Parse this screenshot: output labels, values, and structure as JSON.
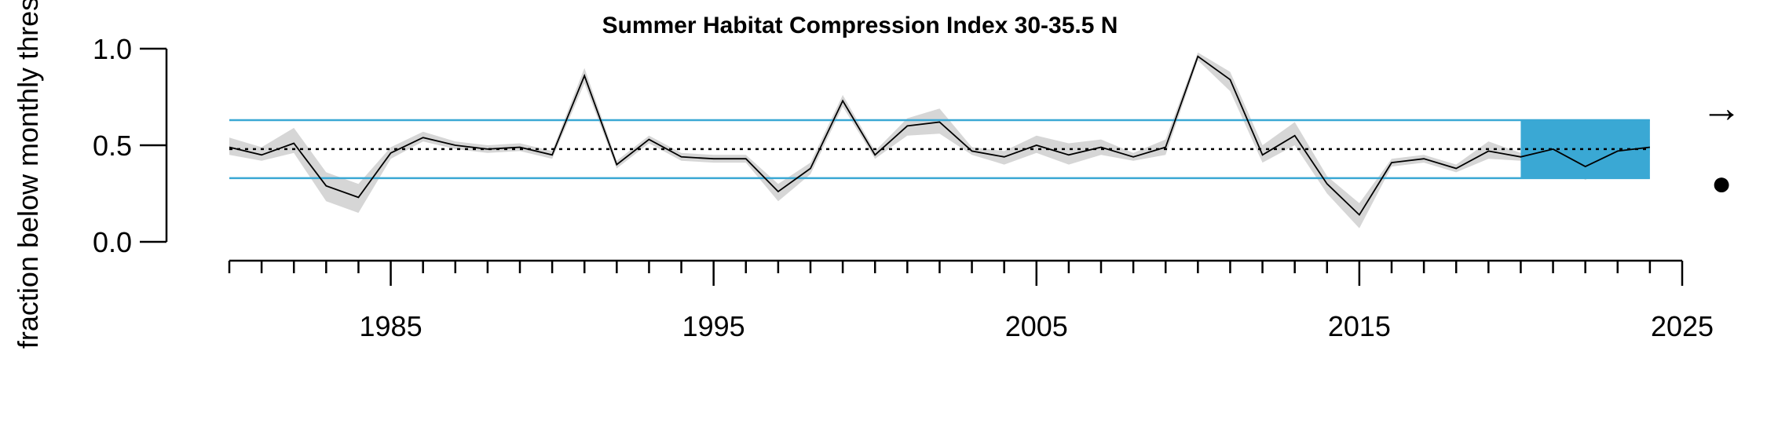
{
  "chart_data": {
    "type": "line",
    "title": "Summer Habitat Compression Index 30-35.5 N",
    "ylabel": "fraction below monthly thres",
    "xlabel": "",
    "xlim": [
      1980,
      2025
    ],
    "ylim": [
      0,
      1
    ],
    "yticks": [
      0.0,
      0.5,
      1.0
    ],
    "ytick_labels": [
      "0.0",
      "0.5",
      "1.0"
    ],
    "xticks_major": [
      1985,
      1995,
      2005,
      2015,
      2025
    ],
    "xtick_labels": [
      "1985",
      "1995",
      "2005",
      "2015",
      "2025"
    ],
    "mean": 0.48,
    "upper_sd": 0.63,
    "lower_sd": 0.33,
    "recent_window": [
      2020,
      2024
    ],
    "trend_symbol": "→",
    "mean_symbol": "●",
    "x": [
      1980,
      1981,
      1982,
      1983,
      1984,
      1985,
      1986,
      1987,
      1988,
      1989,
      1990,
      1991,
      1992,
      1993,
      1994,
      1995,
      1996,
      1997,
      1998,
      1999,
      2000,
      2001,
      2002,
      2003,
      2004,
      2005,
      2006,
      2007,
      2008,
      2009,
      2010,
      2011,
      2012,
      2013,
      2014,
      2015,
      2016,
      2017,
      2018,
      2019,
      2020,
      2021,
      2022,
      2023,
      2024
    ],
    "series": [
      {
        "values": [
          0.49,
          0.45,
          0.51,
          0.29,
          0.23,
          0.46,
          0.54,
          0.5,
          0.48,
          0.49,
          0.45,
          0.86,
          0.4,
          0.53,
          0.44,
          0.43,
          0.43,
          0.26,
          0.38,
          0.73,
          0.45,
          0.6,
          0.62,
          0.47,
          0.44,
          0.5,
          0.45,
          0.49,
          0.44,
          0.49,
          0.96,
          0.84,
          0.45,
          0.55,
          0.3,
          0.14,
          0.41,
          0.43,
          0.38,
          0.47,
          0.44,
          0.48,
          0.39,
          0.47,
          0.49
        ],
        "lower": [
          0.45,
          0.42,
          0.46,
          0.21,
          0.15,
          0.43,
          0.52,
          0.48,
          0.46,
          0.47,
          0.43,
          0.82,
          0.38,
          0.51,
          0.42,
          0.41,
          0.41,
          0.21,
          0.35,
          0.7,
          0.43,
          0.55,
          0.56,
          0.45,
          0.4,
          0.46,
          0.4,
          0.45,
          0.42,
          0.45,
          0.94,
          0.78,
          0.41,
          0.5,
          0.25,
          0.07,
          0.39,
          0.41,
          0.36,
          0.43,
          0.42,
          0.45,
          0.32,
          0.43,
          0.45
        ],
        "upper": [
          0.54,
          0.49,
          0.59,
          0.36,
          0.3,
          0.49,
          0.57,
          0.52,
          0.5,
          0.51,
          0.47,
          0.9,
          0.42,
          0.55,
          0.46,
          0.45,
          0.45,
          0.3,
          0.41,
          0.76,
          0.47,
          0.64,
          0.69,
          0.49,
          0.47,
          0.55,
          0.51,
          0.53,
          0.46,
          0.53,
          0.98,
          0.88,
          0.5,
          0.62,
          0.34,
          0.2,
          0.43,
          0.45,
          0.4,
          0.52,
          0.46,
          0.52,
          0.46,
          0.51,
          0.53
        ]
      }
    ]
  }
}
